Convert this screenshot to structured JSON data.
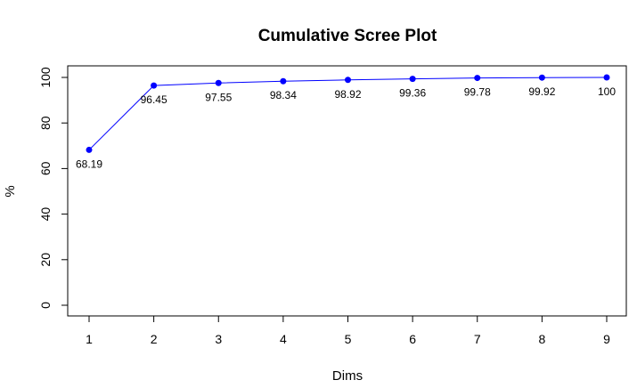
{
  "chart_data": {
    "type": "line",
    "title": "Cumulative Scree Plot",
    "xlabel": "Dims",
    "ylabel": "%",
    "x": [
      1,
      2,
      3,
      4,
      5,
      6,
      7,
      8,
      9
    ],
    "series": [
      {
        "values": [
          68.19,
          96.45,
          97.55,
          98.34,
          98.92,
          99.36,
          99.78,
          99.92,
          100
        ]
      }
    ],
    "data_labels": [
      "68.19",
      "96.45",
      "97.55",
      "98.34",
      "98.92",
      "99.36",
      "99.78",
      "99.92",
      "100"
    ],
    "xticks": [
      1,
      2,
      3,
      4,
      5,
      6,
      7,
      8,
      9
    ],
    "yticks": [
      0,
      20,
      40,
      60,
      80,
      100
    ],
    "xlim": [
      1,
      9
    ],
    "ylim": [
      0,
      100
    ],
    "grid": false,
    "line_color": "#0000ff",
    "marker_color": "#0000ff"
  }
}
